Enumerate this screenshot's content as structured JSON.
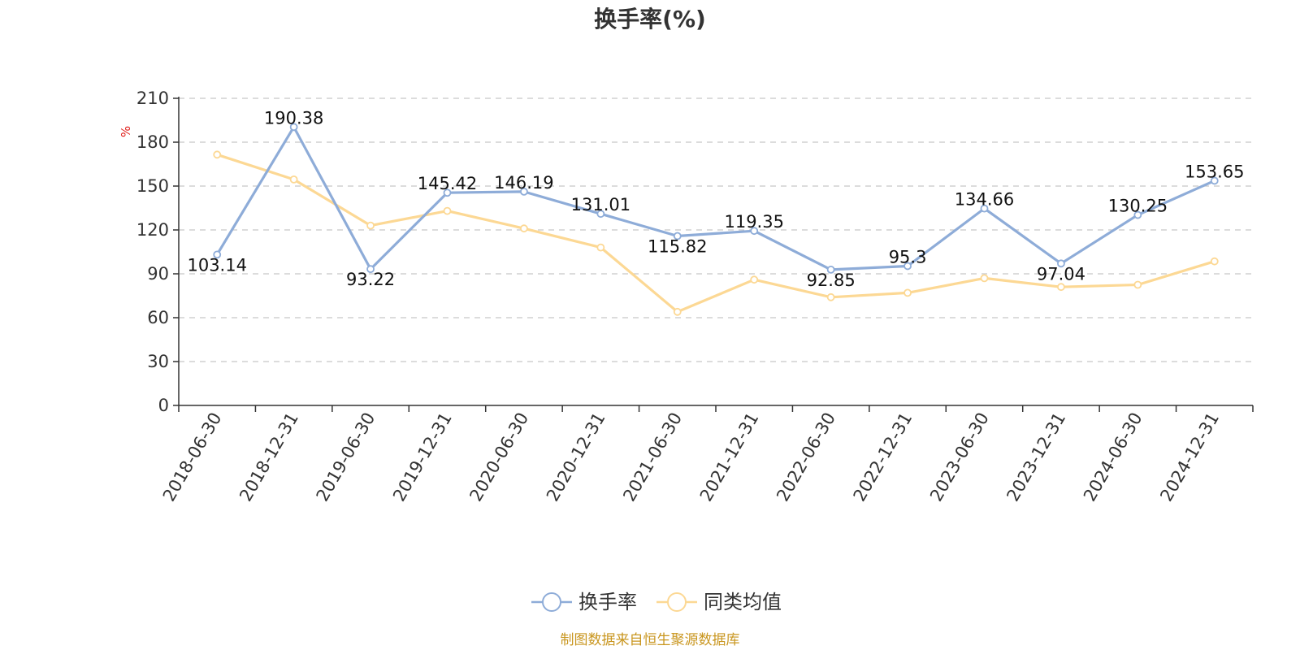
{
  "chart_data": {
    "type": "line",
    "title": "换手率(%)",
    "ylabel": "%",
    "xlabel": "",
    "ylim": [
      0,
      210
    ],
    "yticks": [
      0,
      30,
      60,
      90,
      120,
      150,
      180,
      210
    ],
    "grid": true,
    "legend_position": "bottom",
    "categories": [
      "2018-06-30",
      "2018-12-31",
      "2019-06-30",
      "2019-12-31",
      "2020-06-30",
      "2020-12-31",
      "2021-06-30",
      "2021-12-31",
      "2022-06-30",
      "2022-12-31",
      "2023-06-30",
      "2023-12-31",
      "2024-06-30",
      "2024-12-31"
    ],
    "series": [
      {
        "name": "换手率",
        "color": "#8eacd8",
        "values": [
          103.14,
          190.38,
          93.22,
          145.42,
          146.19,
          131.01,
          115.82,
          119.35,
          92.85,
          95.3,
          134.66,
          97.04,
          130.25,
          153.65
        ],
        "labels": [
          "103.14",
          "190.38",
          "93.22",
          "145.42",
          "146.19",
          "131.01",
          "115.82",
          "119.35",
          "92.85",
          "95.3",
          "134.66",
          "97.04",
          "130.25",
          "153.65"
        ]
      },
      {
        "name": "同类均值",
        "color": "#fcd894",
        "values": [
          171.5,
          154.5,
          123,
          133,
          121,
          108,
          64,
          86,
          74,
          77,
          87,
          81,
          82.5,
          98.5
        ]
      }
    ],
    "source": "制图数据来自恒生聚源数据库"
  }
}
